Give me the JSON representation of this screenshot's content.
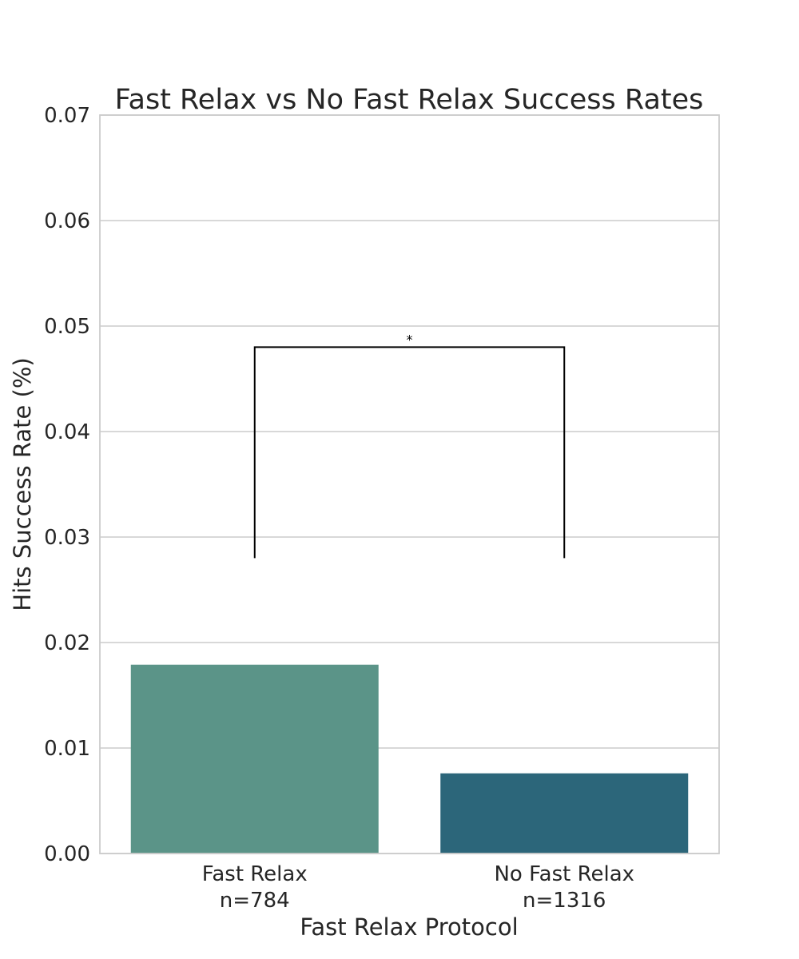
{
  "chart_data": {
    "type": "bar",
    "title": "Fast Relax vs No Fast Relax Success Rates",
    "xlabel": "Fast Relax Protocol",
    "ylabel": "Hits Success Rate (%)",
    "ylim": [
      0,
      0.07
    ],
    "yticks": [
      "0.00",
      "0.01",
      "0.02",
      "0.03",
      "0.04",
      "0.05",
      "0.06",
      "0.07"
    ],
    "grid": true,
    "categories": [
      {
        "name": "Fast Relax",
        "n_label": "n=784"
      },
      {
        "name": "No Fast Relax",
        "n_label": "n=1316"
      }
    ],
    "values": [
      0.0179,
      0.0076
    ],
    "colors": [
      "#5b9488",
      "#2c667a"
    ],
    "significance": {
      "label": "*",
      "between": [
        0,
        1
      ],
      "bracket_top": 0.048,
      "bracket_bottom": 0.028
    }
  }
}
